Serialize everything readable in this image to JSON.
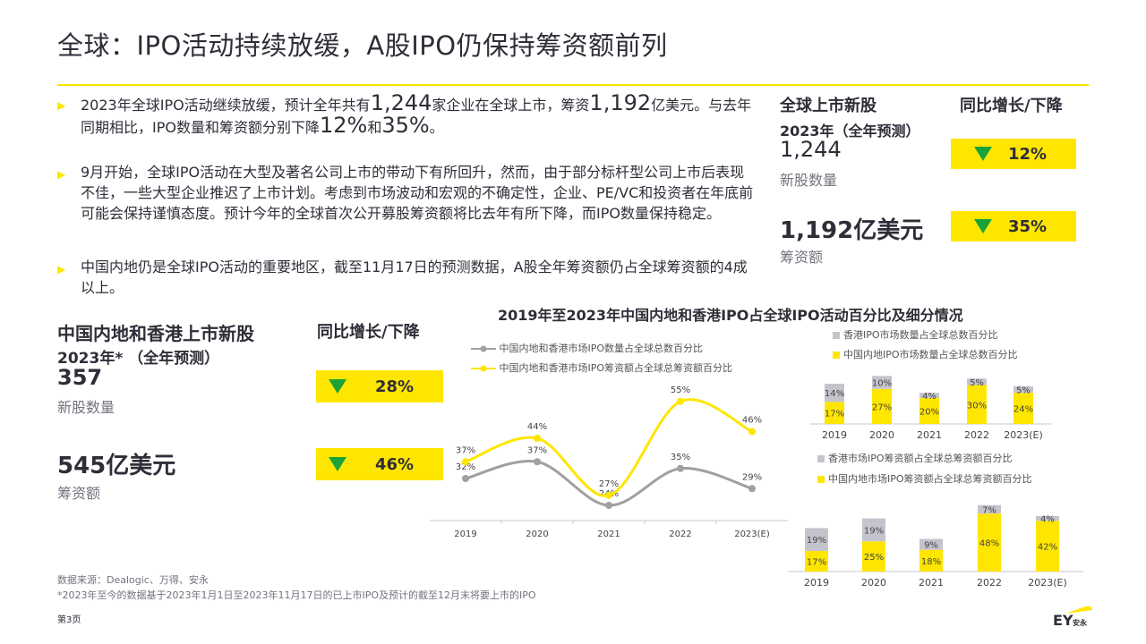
{
  "title": "全球：IPO活动持续放缓，A股IPO仍保持筹资额前列",
  "bullets": {
    "b1": {
      "p1": "2023年全球IPO活动继续放缓，预计全年共有",
      "n1": "1,244",
      "p2": "家企业在全球上市，筹资",
      "n2": "1,192",
      "p3": "亿美元。与去年同期相比，IPO数量和筹资额分别下降",
      "n3": "12%",
      "p4": "和",
      "n4": "35%",
      "p5": "。"
    },
    "b2": "9月开始，全球IPO活动在大型及著名公司上市的带动下有所回升，然而，由于部分标杆型公司上市后表现不佳，一些大型企业推迟了上市计划。考虑到市场波动和宏观的不确定性，企业、PE/VC和投资者在年底前可能会保持谨慎态度。预计今年的全球首次公开募股筹资额将比去年有所下降，而IPO数量保持稳定。",
    "b3": "中国内地仍是全球IPO活动的重要地区，截至11月17日的预测数据，A股全年筹资额仍占全球筹资额的4成以上。"
  },
  "global_stats": {
    "heading": "全球上市新股",
    "yoy_heading": "同比增长/下降",
    "period": "2023年（全年预测）",
    "count": "1,244",
    "count_label": "新股数量",
    "count_change": "12%",
    "amount": "1,192亿美元",
    "amount_label": "筹资额",
    "amount_change": "35%"
  },
  "china_stats": {
    "heading": "中国内地和香港上市新股",
    "yoy_heading": "同比增长/下降",
    "period": "2023年* （全年预测）",
    "count": "357",
    "count_label": "新股数量",
    "count_change": "28%",
    "amount": "545亿美元",
    "amount_label": "筹资额",
    "amount_change": "46%"
  },
  "chart_data": [
    {
      "type": "line",
      "title": "2019年至2023年中国内地和香港IPO占全球IPO活动百分比及细分情况",
      "categories": [
        "2019",
        "2020",
        "2021",
        "2022",
        "2023(E)"
      ],
      "series": [
        {
          "name": "中国内地和香港市场IPO数量占全球总数百分比",
          "values": [
            32,
            37,
            24,
            35,
            29
          ],
          "labels": [
            "32%",
            "37%",
            "24%",
            "35%",
            "29%"
          ],
          "color": "#a0a0a0"
        },
        {
          "name": "中国内地和香港市场IPO筹资额占全球总筹资额百分比",
          "values": [
            37,
            44,
            27,
            55,
            46
          ],
          "labels": [
            "37%",
            "44%",
            "27%",
            "55%",
            "46%"
          ],
          "color": "#ffe600"
        }
      ]
    },
    {
      "type": "bar",
      "stacked": true,
      "categories": [
        "2019",
        "2020",
        "2021",
        "2022",
        "2023(E)"
      ],
      "series": [
        {
          "name": "中国内地IPO市场数量占全球总数百分比",
          "values": [
            17,
            27,
            20,
            30,
            24
          ],
          "labels": [
            "17%",
            "27%",
            "20%",
            "30%",
            "24%"
          ],
          "color": "#ffe600"
        },
        {
          "name": "香港IPO市场数量占全球总数百分比",
          "values": [
            14,
            10,
            4,
            5,
            5
          ],
          "labels": [
            "14%",
            "10%",
            "4%",
            "5%",
            "5%"
          ],
          "color": "#c4c4cd"
        }
      ]
    },
    {
      "type": "bar",
      "stacked": true,
      "categories": [
        "2019",
        "2020",
        "2021",
        "2022",
        "2023(E)"
      ],
      "series": [
        {
          "name": "中国内地市场IPO筹资额占全球总筹资额百分比",
          "values": [
            17,
            25,
            18,
            48,
            42
          ],
          "labels": [
            "17%",
            "25%",
            "18%",
            "48%",
            "42%"
          ],
          "color": "#ffe600"
        },
        {
          "name": "香港市场IPO筹资额占全球总筹资额百分比",
          "values": [
            19,
            19,
            9,
            7,
            4
          ],
          "labels": [
            "19%",
            "19%",
            "9%",
            "7%",
            "4%"
          ],
          "color": "#c4c4cd"
        }
      ]
    }
  ],
  "footer": {
    "source": "数据来源：Dealogic、万得、安永",
    "note": "*2023年至今的数据基于2023年1月1日至2023年11月17日的已上市IPO及预计的截至12月末将要上市的IPO",
    "page": "第3页",
    "logo_text": "EY",
    "logo_sub": "安永"
  },
  "colors": {
    "accent": "#ffe600",
    "down_arrow": "#1aa33a",
    "grey": "#a0a0a0",
    "text": "#2e2e38"
  }
}
